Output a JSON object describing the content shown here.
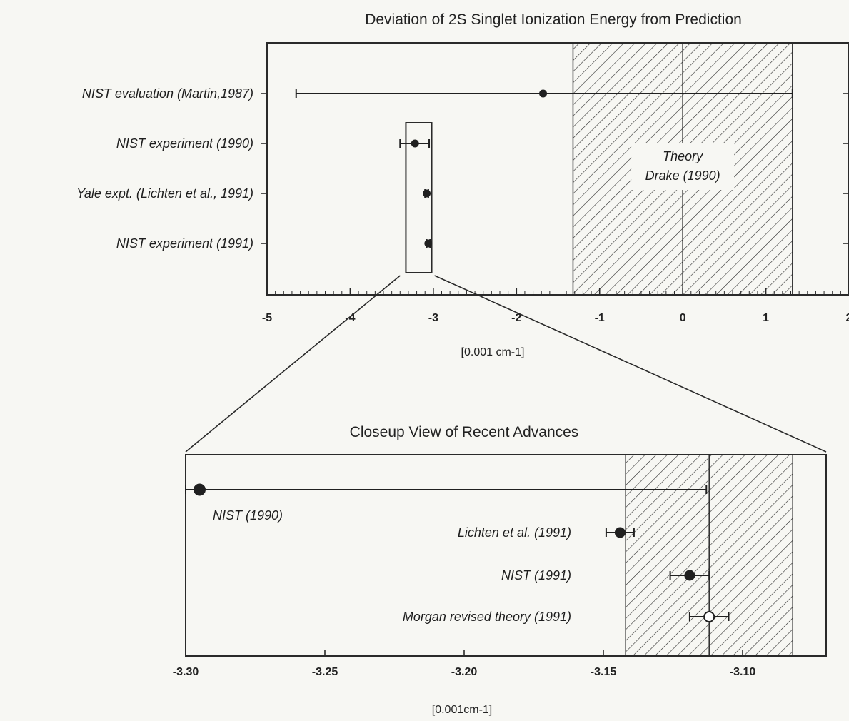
{
  "chart_data": [
    {
      "type": "scatter",
      "title": "Deviation of 2S Singlet Ionization Energy from Prediction",
      "xlabel": "[0.001 cm-1]",
      "xlim": [
        -5,
        2
      ],
      "xticks": [
        -5,
        -4,
        -3,
        -2,
        -1,
        0,
        1,
        2
      ],
      "tick_labels": [
        "-5",
        "-4",
        "-3",
        "-2",
        "-1",
        "0",
        "1",
        "2"
      ],
      "band": {
        "label_lines": [
          "Theory",
          "Drake (1990)"
        ],
        "x_min": -1.32,
        "x_max": 1.32,
        "center": 0
      },
      "zoom_box": {
        "x_min": -3.33,
        "x_max": -3.02
      },
      "points": [
        {
          "label": "NIST evaluation (Martin,1987)",
          "x": -1.68,
          "err_low": -4.65,
          "err_high": 1.32
        },
        {
          "label": "NIST experiment (1990)",
          "x": -3.22,
          "err_low": -3.4,
          "err_high": -3.05
        },
        {
          "label": "Yale expt. (Lichten et al., 1991)",
          "x": -3.08,
          "err_low": -3.1,
          "err_high": -3.06
        },
        {
          "label": "NIST experiment (1991)",
          "x": -3.06,
          "err_low": -3.08,
          "err_high": -3.04
        }
      ]
    },
    {
      "type": "scatter",
      "title": "Closeup View of Recent Advances",
      "xlabel": "[0.001cm-1]",
      "xlim": [
        -3.3,
        -3.07
      ],
      "xticks": [
        -3.3,
        -3.25,
        -3.2,
        -3.15,
        -3.1
      ],
      "tick_labels": [
        "-3.30",
        "-3.25",
        "-3.20",
        "-3.15",
        "-3.10"
      ],
      "band": {
        "x_min": -3.142,
        "x_max": -3.082,
        "center": -3.112
      },
      "points": [
        {
          "label": "NIST (1990)",
          "x": -3.295,
          "err_low": -3.3,
          "err_high": -3.113,
          "marker": "filled",
          "size": "large"
        },
        {
          "label": "Lichten et al. (1991)",
          "x": -3.144,
          "err_low": -3.149,
          "err_high": -3.139,
          "marker": "filled"
        },
        {
          "label": "NIST (1991)",
          "x": -3.119,
          "err_low": -3.126,
          "err_high": -3.112,
          "marker": "filled"
        },
        {
          "label": "Morgan revised theory (1991)",
          "x": -3.112,
          "err_low": -3.119,
          "err_high": -3.105,
          "marker": "open"
        }
      ]
    }
  ]
}
